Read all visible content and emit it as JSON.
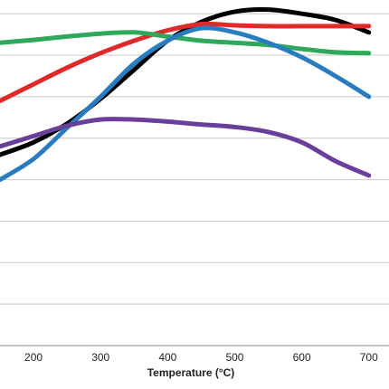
{
  "chart_data": {
    "type": "line",
    "title": "",
    "xlabel": "Temperature (°C)",
    "ylabel": "",
    "xlim": [
      150,
      730
    ],
    "ylim": [
      0,
      8.2
    ],
    "x_ticks": [
      200,
      300,
      400,
      500,
      600,
      700
    ],
    "y_gridlines": [
      0,
      1,
      2,
      3,
      4,
      5,
      6,
      7,
      8
    ],
    "grid": true,
    "legend": "none",
    "series": [
      {
        "color": "#000000",
        "points": [
          [
            150,
            4.6
          ],
          [
            200,
            4.9
          ],
          [
            250,
            5.35
          ],
          [
            300,
            5.95
          ],
          [
            350,
            6.65
          ],
          [
            400,
            7.35
          ],
          [
            450,
            7.8
          ],
          [
            500,
            8.05
          ],
          [
            550,
            8.1
          ],
          [
            600,
            8.0
          ],
          [
            650,
            7.85
          ],
          [
            700,
            7.55
          ]
        ]
      },
      {
        "color": "#e02a2a",
        "points": [
          [
            150,
            5.9
          ],
          [
            200,
            6.3
          ],
          [
            250,
            6.7
          ],
          [
            300,
            7.05
          ],
          [
            350,
            7.35
          ],
          [
            400,
            7.6
          ],
          [
            450,
            7.75
          ],
          [
            500,
            7.72
          ],
          [
            550,
            7.7
          ],
          [
            600,
            7.7
          ],
          [
            650,
            7.7
          ],
          [
            700,
            7.7
          ]
        ]
      },
      {
        "color": "#2ea85a",
        "points": [
          [
            150,
            7.3
          ],
          [
            200,
            7.37
          ],
          [
            250,
            7.45
          ],
          [
            300,
            7.52
          ],
          [
            350,
            7.55
          ],
          [
            400,
            7.45
          ],
          [
            450,
            7.35
          ],
          [
            500,
            7.3
          ],
          [
            550,
            7.25
          ],
          [
            600,
            7.15
          ],
          [
            650,
            7.07
          ],
          [
            700,
            7.05
          ]
        ]
      },
      {
        "color": "#2a7cc0",
        "points": [
          [
            150,
            4.0
          ],
          [
            200,
            4.5
          ],
          [
            250,
            5.25
          ],
          [
            300,
            6.0
          ],
          [
            350,
            6.8
          ],
          [
            400,
            7.35
          ],
          [
            450,
            7.65
          ],
          [
            500,
            7.55
          ],
          [
            550,
            7.3
          ],
          [
            600,
            6.95
          ],
          [
            650,
            6.5
          ],
          [
            700,
            6.0
          ]
        ]
      },
      {
        "color": "#6a3f9c",
        "points": [
          [
            150,
            4.8
          ],
          [
            200,
            5.05
          ],
          [
            250,
            5.3
          ],
          [
            300,
            5.45
          ],
          [
            350,
            5.45
          ],
          [
            400,
            5.4
          ],
          [
            450,
            5.33
          ],
          [
            500,
            5.27
          ],
          [
            550,
            5.15
          ],
          [
            600,
            4.9
          ],
          [
            650,
            4.45
          ],
          [
            700,
            4.1
          ]
        ]
      }
    ]
  }
}
